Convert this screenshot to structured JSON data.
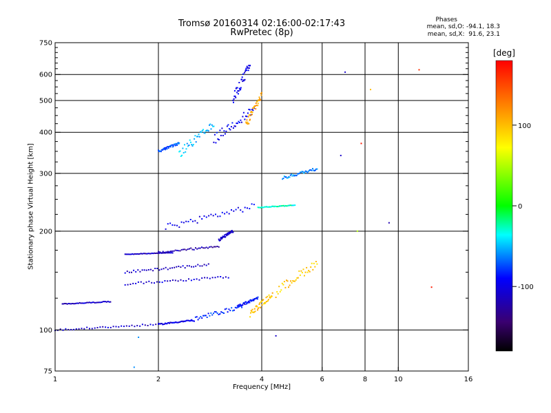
{
  "chart_data": {
    "type": "scatter",
    "title": "Tromsø 20160314 02:16:00-02:17:43",
    "subtitle": "RwPretec (8p)",
    "xlabel": "Frequency [MHz]",
    "ylabel": "Stationary phase Virtual Height [km]",
    "x_scale": "log",
    "y_scale": "log",
    "xlim": [
      1,
      16
    ],
    "ylim": [
      75,
      750
    ],
    "x_ticks": [
      1,
      2,
      4,
      6,
      8,
      10,
      16
    ],
    "x_tick_labels": [
      "1",
      "2",
      "4",
      "6",
      "8",
      "10",
      "16"
    ],
    "x_gridlines": [
      2,
      4,
      6,
      8,
      10
    ],
    "y_ticks": [
      75,
      100,
      200,
      300,
      400,
      500,
      600,
      750
    ],
    "y_tick_labels": [
      "75",
      "100",
      "200",
      "300",
      "400",
      "500",
      "600",
      "750"
    ],
    "y_gridlines": [
      100,
      200,
      300,
      400,
      500,
      600
    ],
    "grid": true,
    "colorbar": {
      "label": "[deg]",
      "ticks": [
        100,
        0,
        -100
      ],
      "tick_labels": [
        "100",
        "0",
        "-100"
      ],
      "range": [
        -180,
        180
      ]
    },
    "phases_info": {
      "heading": "Phases",
      "o_line": "mean, sd,O: -94.1, 18.3",
      "x_line": "mean, sd,X:  91.6, 23.1"
    },
    "traces": [
      {
        "x_range": [
          1.0,
          2.0
        ],
        "y_range": [
          100,
          104
        ],
        "phase": -110
      },
      {
        "x_range": [
          2.0,
          2.5
        ],
        "y_range": [
          104,
          107
        ],
        "phase": -100
      },
      {
        "x_range": [
          2.5,
          3.5
        ],
        "y_range": [
          107,
          118
        ],
        "phase": -80
      },
      {
        "x_range": [
          3.4,
          3.9
        ],
        "y_range": [
          118,
          125
        ],
        "phase": -90
      },
      {
        "x_range": [
          1.05,
          1.45
        ],
        "y_range": [
          120,
          122
        ],
        "phase": -110
      },
      {
        "x_range": [
          1.6,
          2.2
        ],
        "y_range": [
          170,
          172
        ],
        "phase": -115
      },
      {
        "x_range": [
          1.6,
          2.8
        ],
        "y_range": [
          150,
          158
        ],
        "phase": -110
      },
      {
        "x_range": [
          1.6,
          3.2
        ],
        "y_range": [
          138,
          145
        ],
        "phase": -105
      },
      {
        "x_range": [
          2.0,
          3.0
        ],
        "y_range": [
          172,
          180
        ],
        "phase": -120
      },
      {
        "x_range": [
          3.0,
          3.3
        ],
        "y_range": [
          188,
          200
        ],
        "phase": -110
      },
      {
        "x_range": [
          2.1,
          3.8
        ],
        "y_range": [
          205,
          238
        ],
        "phase": -100
      },
      {
        "x_range": [
          3.9,
          5.0
        ],
        "y_range": [
          236,
          240
        ],
        "phase": -30
      },
      {
        "x_range": [
          3.7,
          4.3
        ],
        "y_range": [
          112,
          128
        ],
        "phase": 100
      },
      {
        "x_range": [
          4.4,
          5.8
        ],
        "y_range": [
          130,
          160
        ],
        "phase": 95
      },
      {
        "x_range": [
          2.0,
          2.3
        ],
        "y_range": [
          350,
          370
        ],
        "phase": -70
      },
      {
        "x_range": [
          2.3,
          2.9
        ],
        "y_range": [
          345,
          420
        ],
        "phase": -50
      },
      {
        "x_range": [
          2.9,
          3.8
        ],
        "y_range": [
          380,
          470
        ],
        "phase": -95
      },
      {
        "x_range": [
          3.3,
          3.7
        ],
        "y_range": [
          500,
          640
        ],
        "phase": -100
      },
      {
        "x_range": [
          3.6,
          4.0
        ],
        "y_range": [
          420,
          520
        ],
        "phase": 110
      },
      {
        "x_range": [
          4.6,
          5.8
        ],
        "y_range": [
          290,
          310
        ],
        "phase": -60
      }
    ],
    "isolated_points": [
      {
        "x": 7.0,
        "y": 610,
        "phase": -110
      },
      {
        "x": 11.5,
        "y": 620,
        "phase": 160
      },
      {
        "x": 12.5,
        "y": 135,
        "phase": 170
      },
      {
        "x": 7.6,
        "y": 200,
        "phase": 50
      },
      {
        "x": 8.3,
        "y": 540,
        "phase": 100
      },
      {
        "x": 7.8,
        "y": 370,
        "phase": 170
      },
      {
        "x": 9.4,
        "y": 212,
        "phase": -120
      },
      {
        "x": 6.8,
        "y": 340,
        "phase": -110
      },
      {
        "x": 1.75,
        "y": 95,
        "phase": -60
      },
      {
        "x": 1.7,
        "y": 77,
        "phase": -60
      },
      {
        "x": 4.4,
        "y": 96,
        "phase": -110
      }
    ]
  }
}
